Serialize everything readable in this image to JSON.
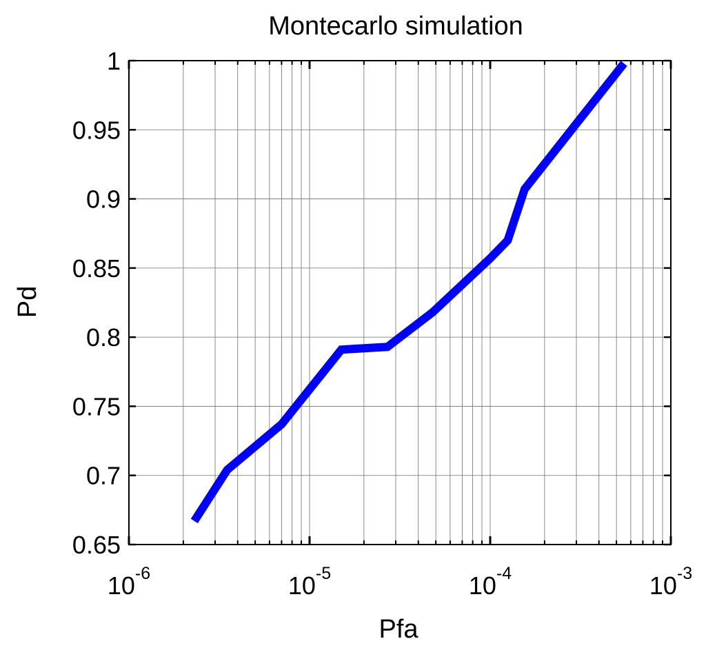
{
  "chart_data": {
    "type": "line",
    "title": "Montecarlo simulation",
    "xlabel": "Pfa",
    "ylabel": "Pd",
    "xscale": "log",
    "xlim": [
      1e-06,
      0.001
    ],
    "ylim": [
      0.65,
      1.0
    ],
    "grid": true,
    "xticks": [
      {
        "value": 1e-06,
        "base": "10",
        "exp": "-6"
      },
      {
        "value": 1e-05,
        "base": "10",
        "exp": "-5"
      },
      {
        "value": 0.0001,
        "base": "10",
        "exp": "-4"
      },
      {
        "value": 0.001,
        "base": "10",
        "exp": "-3"
      }
    ],
    "yticks": [
      {
        "value": 0.65,
        "label": "0.65"
      },
      {
        "value": 0.7,
        "label": "0.7"
      },
      {
        "value": 0.75,
        "label": "0.75"
      },
      {
        "value": 0.8,
        "label": "0.8"
      },
      {
        "value": 0.85,
        "label": "0.85"
      },
      {
        "value": 0.9,
        "label": "0.9"
      },
      {
        "value": 0.95,
        "label": "0.95"
      },
      {
        "value": 1.0,
        "label": "1"
      }
    ],
    "series": [
      {
        "color": "#0000ff",
        "x": [
          2.3e-06,
          3.5e-06,
          7e-06,
          1.5e-05,
          2.7e-05,
          4.8e-05,
          0.0001,
          0.000125,
          0.000155,
          0.00055
        ],
        "y": [
          0.667,
          0.704,
          0.737,
          0.791,
          0.793,
          0.818,
          0.857,
          0.87,
          0.907,
          0.998
        ]
      }
    ]
  }
}
